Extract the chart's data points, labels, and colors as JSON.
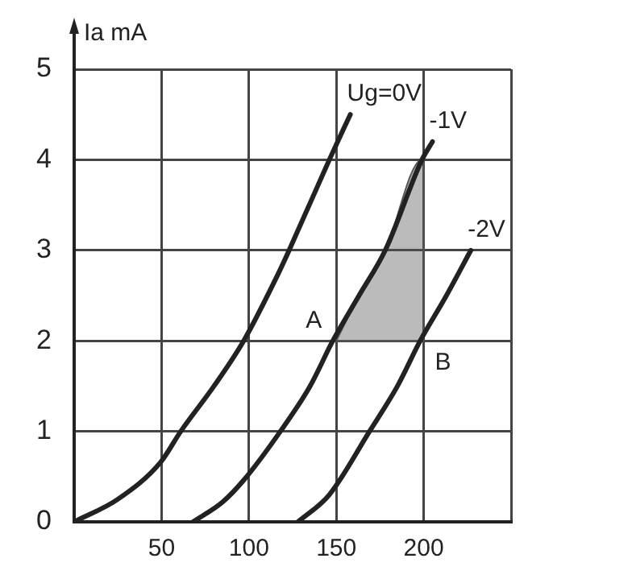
{
  "chart_data": {
    "type": "line",
    "ylabel": "Ia mA",
    "xlim": [
      0,
      250
    ],
    "ylim": [
      0,
      5
    ],
    "xticks": [
      {
        "value": 0,
        "label": null
      },
      50,
      100,
      150,
      200,
      {
        "value": 250,
        "label": null
      }
    ],
    "yticks": [
      0,
      1,
      2,
      3,
      4,
      5
    ],
    "grid": true,
    "legend": false,
    "marker": "none",
    "line_style": "solid",
    "series": [
      {
        "name": "Ug=0V",
        "color": "#222222",
        "x": [
          0,
          25,
          49.5,
          61,
          80,
          97,
          117,
          123,
          146,
          158
        ],
        "values": [
          0,
          0.25,
          0.66,
          1,
          1.5,
          2,
          2.75,
          3,
          4,
          4.5
        ]
      },
      {
        "name": "-1V",
        "color": "#222222",
        "x": [
          68,
          85,
          97,
          118,
          135,
          148,
          163,
          178,
          199,
          205
        ],
        "values": [
          0,
          0.22,
          0.46,
          1,
          1.5,
          2,
          2.5,
          3,
          4,
          4.2
        ]
      },
      {
        "name": "-2V",
        "color": "#222222",
        "x": [
          128,
          146,
          169,
          185,
          198,
          213,
          227
        ],
        "values": [
          0,
          0.3,
          1,
          1.5,
          2,
          2.5,
          3
        ]
      },
      {
        "type": "area",
        "color": "#555555",
        "x": [
          150,
          163,
          178,
          199,
          200,
          200,
          150
        ],
        "values": [
          2,
          2.5,
          3,
          4,
          4,
          2,
          2
        ]
      }
    ],
    "annotations": [
      {
        "text": "A",
        "x": 150,
        "y": 2
      },
      {
        "text": "B",
        "x": 200,
        "y": 2
      }
    ]
  }
}
